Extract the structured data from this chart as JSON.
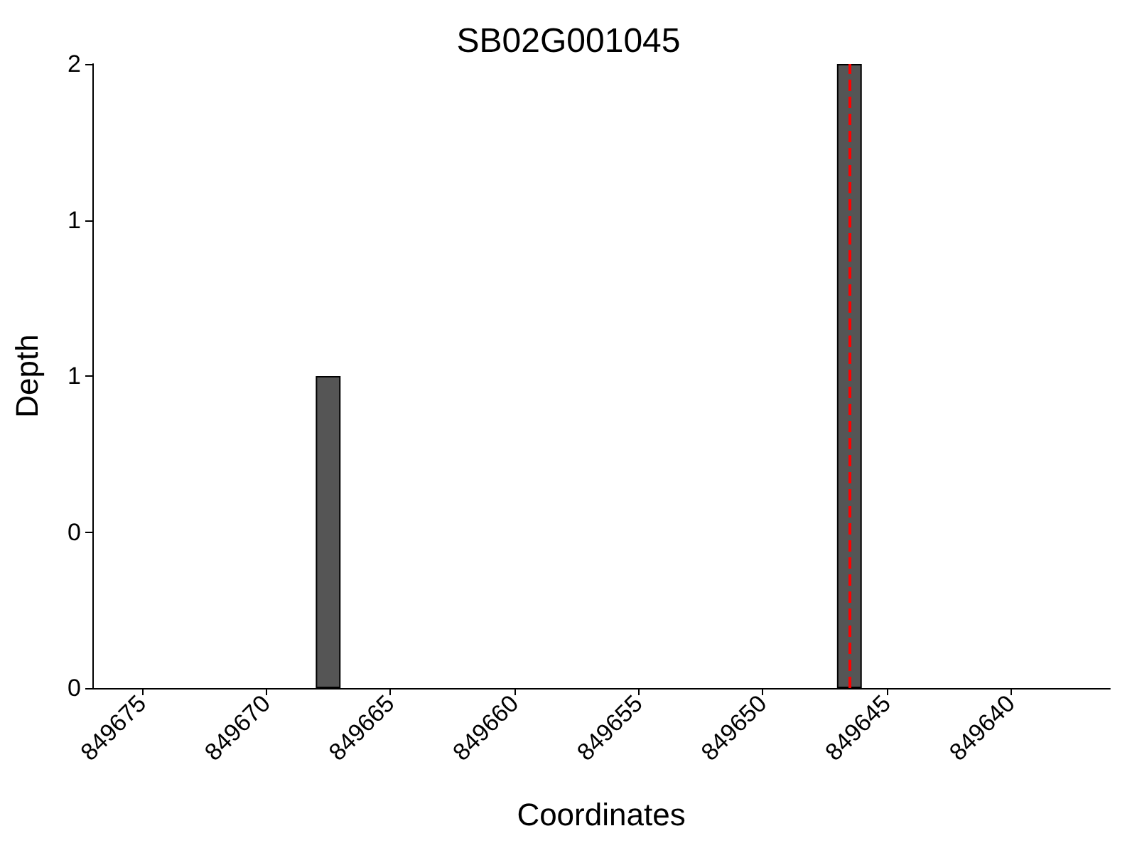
{
  "chart_data": {
    "type": "bar",
    "title": "SB02G001045",
    "xlabel": "Coordinates",
    "ylabel": "Depth",
    "x": [
      849667.5,
      849646.5
    ],
    "values": [
      1,
      2
    ],
    "color": "#555555",
    "xlim": [
      849677,
      849636
    ],
    "xticks": [
      849675,
      849670,
      849665,
      849660,
      849655,
      849650,
      849645,
      849640
    ],
    "ylim": [
      0,
      2
    ],
    "yticks": [
      0,
      {
        "value": 0.5,
        "label": "0"
      },
      1,
      {
        "value": 1.5,
        "label": "1"
      },
      2
    ],
    "ref_lines": [
      {
        "axis": "x",
        "value": 849646.5,
        "color": "#ff0000",
        "line_style": "dashed"
      }
    ],
    "grid": false
  }
}
